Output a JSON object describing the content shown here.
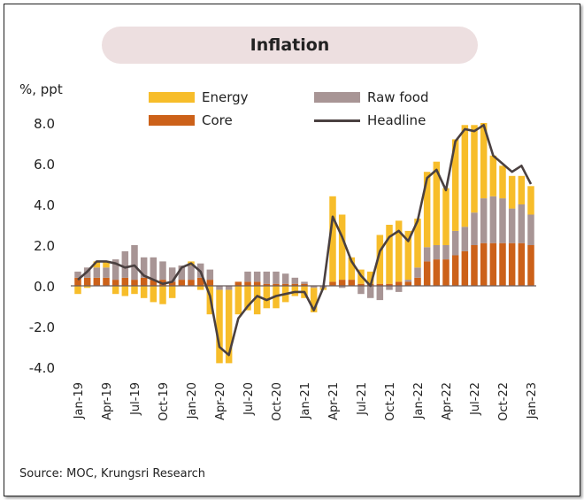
{
  "chart_data": {
    "type": "bar",
    "stacked": true,
    "title": "Inflation",
    "ylabel": "%, ppt",
    "ylim": [
      -4,
      8.5
    ],
    "yticks": [
      "8.0",
      "6.0",
      "4.0",
      "2.0",
      "0.0",
      "-2.0",
      "-4.0"
    ],
    "ytick_values": [
      8,
      6,
      4,
      2,
      0,
      -2,
      -4
    ],
    "categories": [
      "Jan-19",
      "Feb-19",
      "Mar-19",
      "Apr-19",
      "May-19",
      "Jun-19",
      "Jul-19",
      "Aug-19",
      "Sep-19",
      "Oct-19",
      "Nov-19",
      "Dec-19",
      "Jan-20",
      "Feb-20",
      "Mar-20",
      "Apr-20",
      "May-20",
      "Jun-20",
      "Jul-20",
      "Aug-20",
      "Sep-20",
      "Oct-20",
      "Nov-20",
      "Dec-20",
      "Jan-21",
      "Feb-21",
      "Mar-21",
      "Apr-21",
      "May-21",
      "Jun-21",
      "Jul-21",
      "Aug-21",
      "Sep-21",
      "Oct-21",
      "Nov-21",
      "Dec-21",
      "Jan-22",
      "Feb-22",
      "Mar-22",
      "Apr-22",
      "May-22",
      "Jun-22",
      "Jul-22",
      "Aug-22",
      "Sep-22",
      "Oct-22",
      "Nov-22",
      "Dec-22",
      "Jan-23"
    ],
    "xtick_labels": [
      "Jan-19",
      "Apr-19",
      "Jul-19",
      "Oct-19",
      "Jan-20",
      "Apr-20",
      "Jul-20",
      "Oct-20",
      "Jan-21",
      "Apr-21",
      "Jul-21",
      "Oct-21",
      "Jan-22",
      "Apr-22",
      "Jul-22",
      "Oct-22",
      "Jan-23"
    ],
    "series": [
      {
        "name": "Core",
        "kind": "bar",
        "color": "#cc6119",
        "values": [
          0.4,
          0.4,
          0.4,
          0.4,
          0.3,
          0.4,
          0.3,
          0.4,
          0.3,
          0.3,
          0.2,
          0.3,
          0.3,
          0.4,
          0.3,
          0.0,
          0.0,
          0.2,
          0.2,
          0.2,
          0.1,
          0.1,
          0.1,
          0.1,
          0.1,
          0.0,
          0.0,
          0.2,
          0.3,
          0.3,
          0.1,
          0.1,
          0.1,
          0.1,
          0.2,
          0.2,
          0.4,
          1.2,
          1.3,
          1.3,
          1.5,
          1.7,
          2.0,
          2.1,
          2.1,
          2.1,
          2.1,
          2.1,
          2.0
        ]
      },
      {
        "name": "Raw food",
        "kind": "bar",
        "color": "#a89595",
        "values": [
          0.3,
          0.5,
          0.5,
          0.5,
          1.0,
          1.3,
          1.7,
          1.0,
          1.1,
          0.9,
          0.7,
          0.7,
          0.7,
          0.7,
          0.5,
          -0.2,
          -0.2,
          0.0,
          0.5,
          0.5,
          0.6,
          0.6,
          0.5,
          0.3,
          0.1,
          -0.1,
          -0.1,
          0.0,
          -0.1,
          0.0,
          -0.4,
          -0.6,
          -0.7,
          -0.2,
          -0.3,
          0.1,
          0.5,
          0.7,
          0.7,
          0.7,
          1.2,
          1.2,
          1.6,
          2.2,
          2.3,
          2.2,
          1.7,
          1.9,
          1.5
        ]
      },
      {
        "name": "Energy",
        "kind": "bar",
        "color": "#f7bd2a",
        "values": [
          -0.4,
          -0.1,
          0.3,
          0.3,
          -0.4,
          -0.5,
          -0.4,
          -0.6,
          -0.8,
          -0.9,
          -0.6,
          0.0,
          0.2,
          -0.2,
          -1.4,
          -3.6,
          -3.6,
          -1.4,
          -1.2,
          -1.4,
          -1.1,
          -1.1,
          -0.8,
          -0.5,
          -0.6,
          -1.2,
          -0.1,
          4.2,
          3.2,
          1.1,
          0.7,
          0.6,
          2.4,
          2.9,
          3.0,
          2.4,
          2.4,
          3.7,
          4.1,
          2.8,
          4.5,
          5.0,
          4.3,
          3.7,
          2.0,
          1.6,
          1.6,
          1.4,
          1.4
        ]
      },
      {
        "name": "Headline",
        "kind": "line",
        "color": "#4a4040",
        "values": [
          0.3,
          0.7,
          1.2,
          1.2,
          1.1,
          0.9,
          1.0,
          0.5,
          0.3,
          0.1,
          0.2,
          0.9,
          1.1,
          0.7,
          -0.5,
          -3.0,
          -3.4,
          -1.6,
          -1.0,
          -0.5,
          -0.7,
          -0.5,
          -0.4,
          -0.3,
          -0.3,
          -1.2,
          -0.1,
          3.4,
          2.4,
          1.2,
          0.5,
          0.0,
          1.7,
          2.4,
          2.7,
          2.2,
          3.2,
          5.3,
          5.7,
          4.7,
          7.1,
          7.7,
          7.6,
          7.9,
          6.4,
          6.0,
          5.6,
          5.9,
          5.0
        ]
      }
    ],
    "legend": [
      "Energy",
      "Raw food",
      "Core",
      "Headline"
    ],
    "legend_placement": "top",
    "grid": false
  },
  "source": "Source: MOC, Krungsri Research"
}
